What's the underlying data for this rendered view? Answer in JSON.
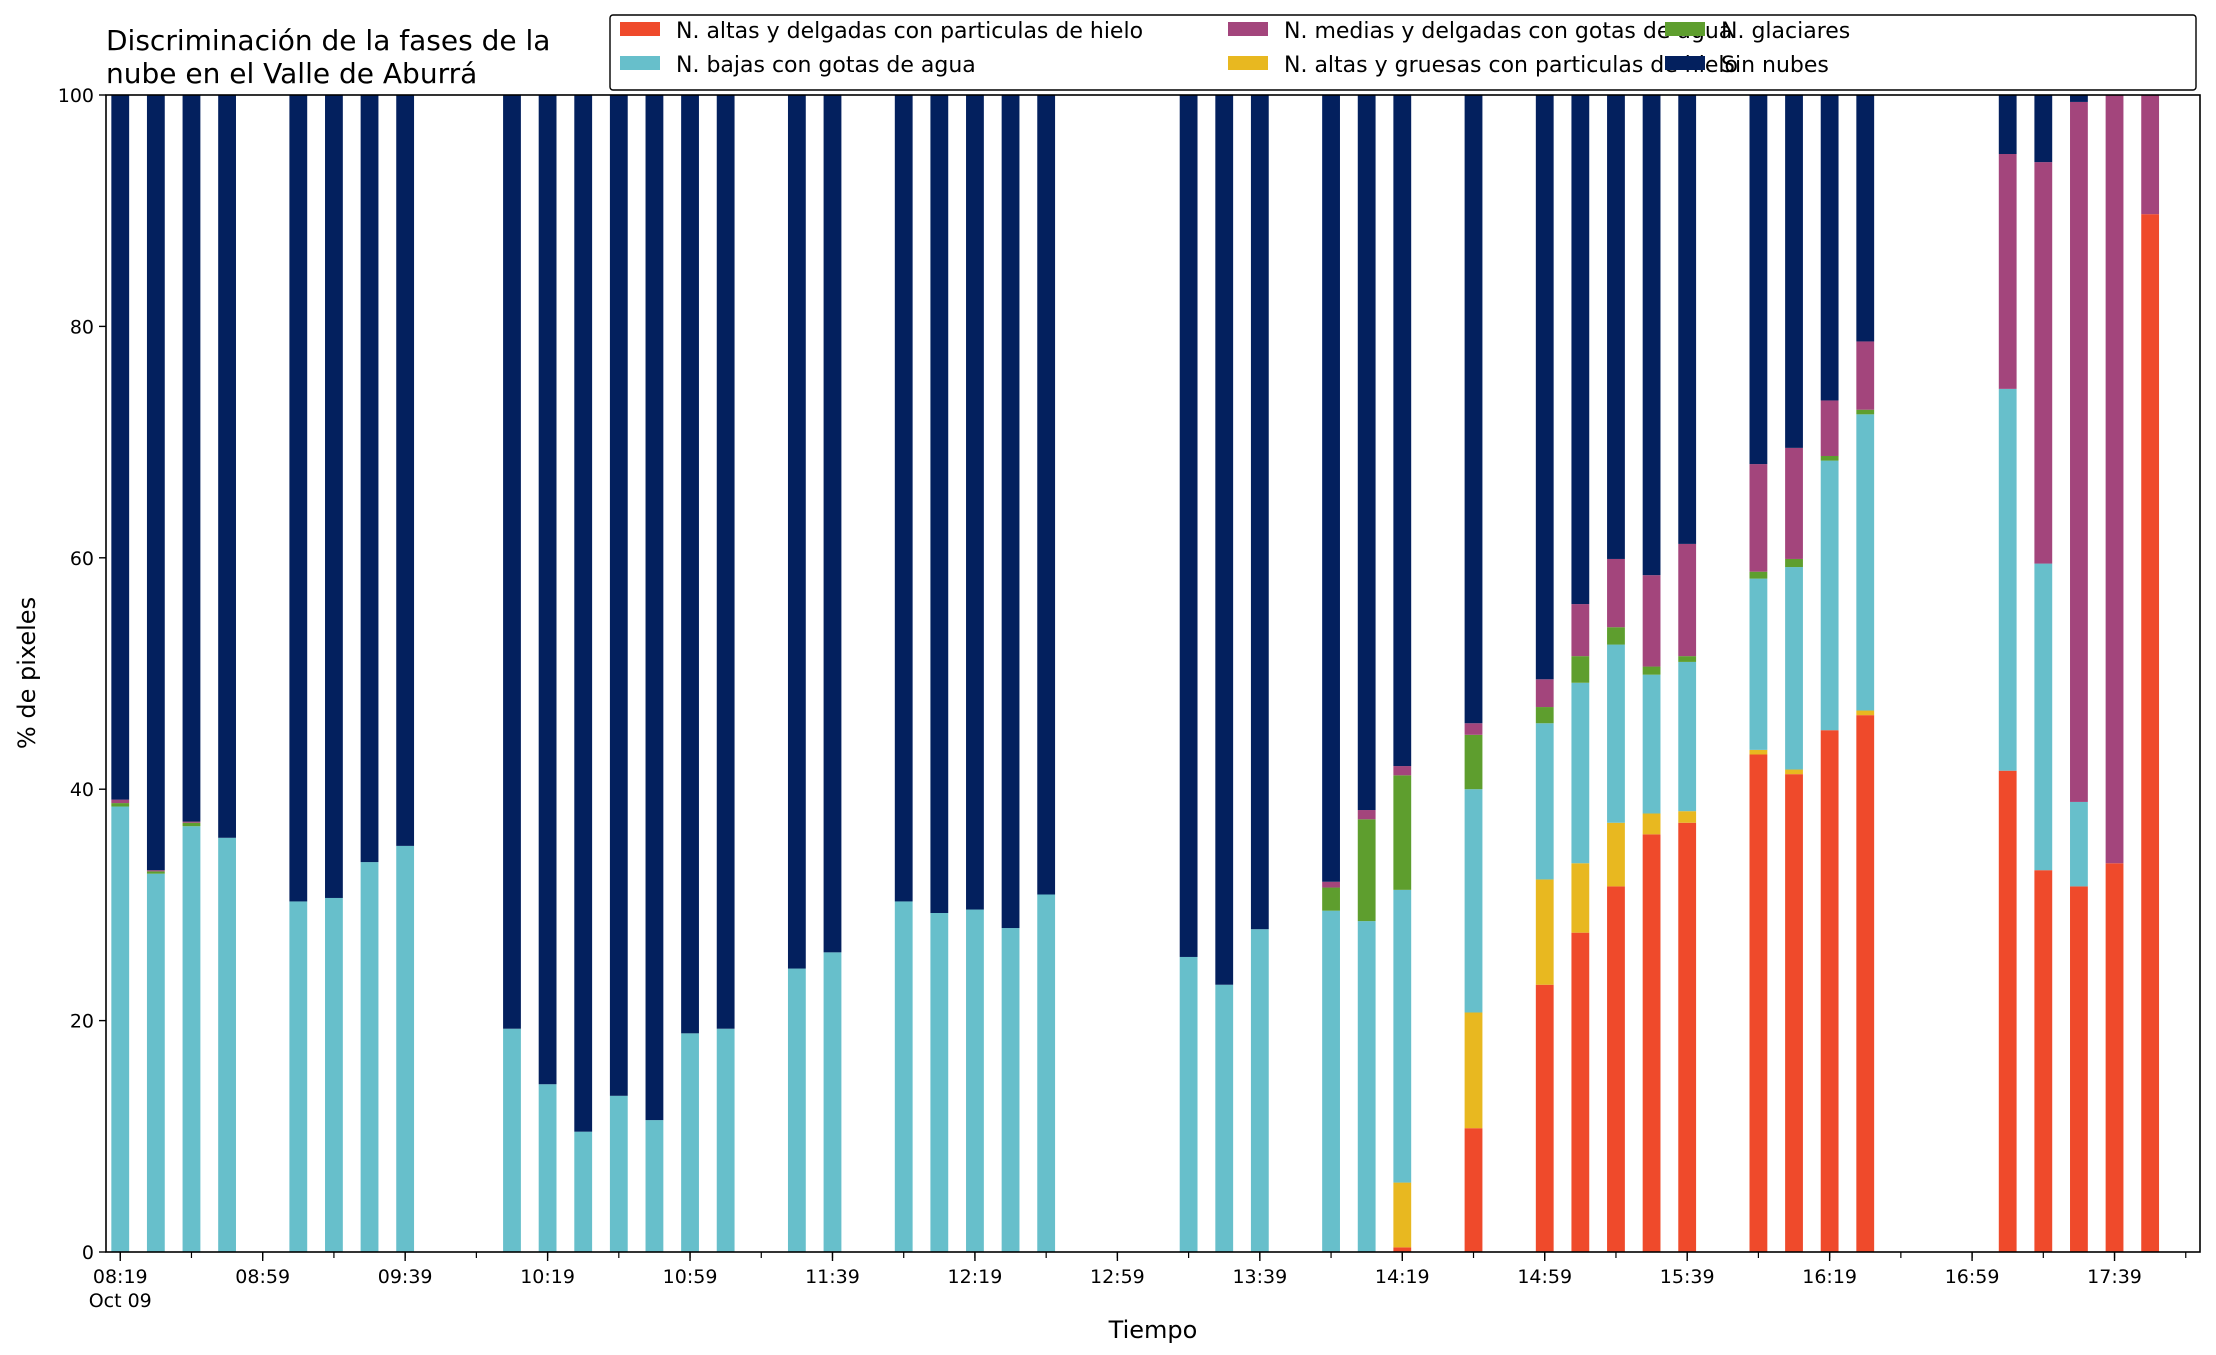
{
  "chart_data": {
    "type": "bar",
    "stacked": true,
    "title": [
      "Discriminación de la fases de la",
      "nube en el Valle de Aburrá"
    ],
    "xlabel": "Tiempo",
    "ylabel": "% de pixeles",
    "ylim": [
      0,
      100
    ],
    "yticks": [
      0,
      20,
      40,
      60,
      80,
      100
    ],
    "x_start": "08:19",
    "x_end": "17:59",
    "x_tick_labels": [
      {
        "time": "08:19",
        "label": "08:19",
        "sublabel": "Oct 09"
      },
      {
        "time": "08:59",
        "label": "08:59"
      },
      {
        "time": "09:39",
        "label": "09:39"
      },
      {
        "time": "10:19",
        "label": "10:19"
      },
      {
        "time": "10:59",
        "label": "10:59"
      },
      {
        "time": "11:39",
        "label": "11:39"
      },
      {
        "time": "12:19",
        "label": "12:19"
      },
      {
        "time": "12:59",
        "label": "12:59"
      },
      {
        "time": "13:39",
        "label": "13:39"
      },
      {
        "time": "14:19",
        "label": "14:19"
      },
      {
        "time": "14:59",
        "label": "14:59"
      },
      {
        "time": "15:39",
        "label": "15:39"
      },
      {
        "time": "16:19",
        "label": "16:19"
      },
      {
        "time": "16:59",
        "label": "16:59"
      },
      {
        "time": "17:39",
        "label": "17:39"
      }
    ],
    "legend_position": "top-right",
    "legend_order": [
      0,
      2,
      4,
      1,
      3,
      5
    ],
    "series": [
      {
        "name": "N. altas y delgadas con particulas de hielo",
        "color": "#ef4a2b"
      },
      {
        "name": "N. altas y gruesas con particulas de hielo",
        "color": "#e8b820"
      },
      {
        "name": "N. bajas con gotas de agua",
        "color": "#67bfcb"
      },
      {
        "name": "N. glaciares",
        "color": "#5e9e2e"
      },
      {
        "name": "N. medias y delgadas con gotas de agua",
        "color": "#a3457c"
      },
      {
        "name": "Sin nubes",
        "color": "#03205e"
      }
    ],
    "bars": [
      {
        "time": "08:19",
        "values": [
          0,
          0,
          38.5,
          0.3,
          0.3,
          60.9
        ]
      },
      {
        "time": "08:29",
        "values": [
          0,
          0,
          32.7,
          0.2,
          0.1,
          67.0
        ]
      },
      {
        "time": "08:39",
        "values": [
          0,
          0,
          36.8,
          0.3,
          0.1,
          62.8
        ]
      },
      {
        "time": "08:49",
        "values": [
          0,
          0,
          35.8,
          0,
          0,
          64.2
        ]
      },
      {
        "time": "09:09",
        "values": [
          0,
          0,
          30.3,
          0,
          0,
          69.7
        ]
      },
      {
        "time": "09:19",
        "values": [
          0,
          0,
          30.6,
          0,
          0,
          69.4
        ]
      },
      {
        "time": "09:29",
        "values": [
          0,
          0,
          33.7,
          0,
          0,
          66.3
        ]
      },
      {
        "time": "09:39",
        "values": [
          0,
          0,
          35.1,
          0,
          0,
          64.9
        ]
      },
      {
        "time": "10:09",
        "values": [
          0,
          0,
          19.3,
          0,
          0,
          80.7
        ]
      },
      {
        "time": "10:19",
        "values": [
          0,
          0,
          14.5,
          0,
          0,
          85.5
        ]
      },
      {
        "time": "10:29",
        "values": [
          0,
          0,
          10.4,
          0,
          0,
          89.6
        ]
      },
      {
        "time": "10:39",
        "values": [
          0,
          0,
          13.5,
          0,
          0,
          86.5
        ]
      },
      {
        "time": "10:49",
        "values": [
          0,
          0,
          11.4,
          0,
          0,
          88.6
        ]
      },
      {
        "time": "10:59",
        "values": [
          0,
          0,
          18.9,
          0,
          0,
          81.1
        ]
      },
      {
        "time": "11:09",
        "values": [
          0,
          0,
          19.3,
          0,
          0,
          80.7
        ]
      },
      {
        "time": "11:29",
        "values": [
          0,
          0,
          24.5,
          0,
          0,
          75.5
        ]
      },
      {
        "time": "11:39",
        "values": [
          0,
          0,
          25.9,
          0,
          0,
          74.1
        ]
      },
      {
        "time": "11:59",
        "values": [
          0,
          0,
          30.3,
          0,
          0,
          69.7
        ]
      },
      {
        "time": "12:09",
        "values": [
          0,
          0,
          29.3,
          0,
          0,
          70.7
        ]
      },
      {
        "time": "12:19",
        "values": [
          0,
          0,
          29.6,
          0,
          0,
          70.4
        ]
      },
      {
        "time": "12:29",
        "values": [
          0,
          0,
          28.0,
          0,
          0,
          72.0
        ]
      },
      {
        "time": "12:39",
        "values": [
          0,
          0,
          30.9,
          0,
          0,
          69.1
        ]
      },
      {
        "time": "13:19",
        "values": [
          0,
          0,
          25.5,
          0,
          0,
          74.5
        ]
      },
      {
        "time": "13:29",
        "values": [
          0,
          0,
          23.1,
          0,
          0,
          76.9
        ]
      },
      {
        "time": "13:39",
        "values": [
          0,
          0,
          27.9,
          0,
          0,
          72.1
        ]
      },
      {
        "time": "13:59",
        "values": [
          0,
          0,
          29.5,
          2.0,
          0.5,
          68.0
        ]
      },
      {
        "time": "14:09",
        "values": [
          0,
          0,
          28.6,
          8.8,
          0.8,
          61.8
        ]
      },
      {
        "time": "14:19",
        "values": [
          0.4,
          5.6,
          25.3,
          9.9,
          0.8,
          58.0
        ]
      },
      {
        "time": "14:39",
        "values": [
          10.7,
          10.0,
          19.3,
          4.7,
          1.0,
          54.3
        ]
      },
      {
        "time": "14:59",
        "values": [
          23.1,
          9.1,
          13.5,
          1.4,
          2.4,
          50.5
        ]
      },
      {
        "time": "15:09",
        "values": [
          27.6,
          6.0,
          15.6,
          2.3,
          4.5,
          44.0
        ]
      },
      {
        "time": "15:19",
        "values": [
          31.6,
          5.5,
          15.4,
          1.5,
          5.9,
          40.1
        ]
      },
      {
        "time": "15:29",
        "values": [
          36.1,
          1.8,
          12.0,
          0.7,
          7.9,
          41.5
        ]
      },
      {
        "time": "15:39",
        "values": [
          37.1,
          1.0,
          12.9,
          0.5,
          9.7,
          38.8
        ]
      },
      {
        "time": "15:59",
        "values": [
          43.0,
          0.4,
          14.8,
          0.6,
          9.3,
          31.9
        ]
      },
      {
        "time": "16:09",
        "values": [
          41.3,
          0.4,
          17.5,
          0.7,
          9.6,
          30.5
        ]
      },
      {
        "time": "16:19",
        "values": [
          45.1,
          0,
          23.3,
          0.4,
          4.8,
          26.4
        ]
      },
      {
        "time": "16:29",
        "values": [
          46.4,
          0.4,
          25.6,
          0.4,
          5.9,
          21.3
        ]
      },
      {
        "time": "17:09",
        "values": [
          41.6,
          0,
          33.0,
          0,
          20.3,
          5.1
        ]
      },
      {
        "time": "17:19",
        "values": [
          33.0,
          0,
          26.5,
          0,
          34.7,
          5.8
        ]
      },
      {
        "time": "17:29",
        "values": [
          31.6,
          0,
          7.3,
          0,
          60.5,
          0.6
        ]
      },
      {
        "time": "17:39",
        "values": [
          33.6,
          0,
          0,
          0,
          66.4,
          0
        ]
      },
      {
        "time": "17:49",
        "values": [
          89.7,
          0,
          0,
          0,
          10.3,
          0
        ]
      }
    ]
  }
}
